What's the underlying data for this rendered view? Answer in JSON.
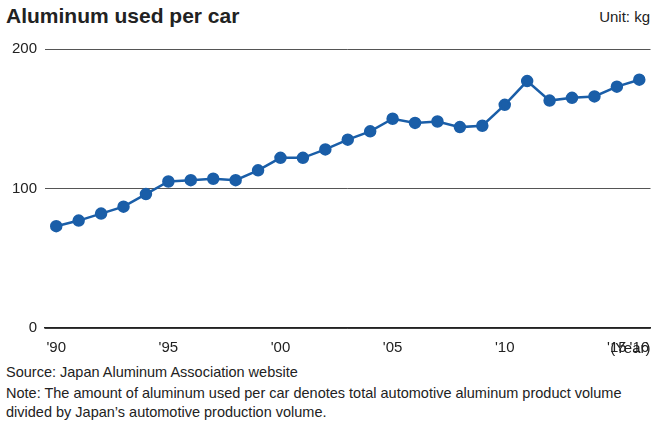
{
  "chart_data": {
    "type": "line",
    "title": "Aluminum used per car",
    "ylabel": "Unit: kg",
    "xlabel": "(Year)",
    "categories": [
      "'90",
      null,
      null,
      null,
      null,
      "'95",
      null,
      null,
      null,
      null,
      "'00",
      null,
      null,
      null,
      null,
      "'05",
      null,
      null,
      null,
      null,
      "'10",
      null,
      null,
      null,
      null,
      "'15",
      "'16"
    ],
    "values": [
      73,
      77,
      82,
      87,
      96,
      105,
      106,
      107,
      106,
      113,
      122,
      122,
      128,
      135,
      141,
      150,
      147,
      148,
      144,
      145,
      160,
      177,
      163,
      165,
      166,
      173,
      178
    ],
    "color": "#1a5ea8",
    "marker": "circle",
    "line_style": "solid",
    "ylim": [
      0,
      200
    ],
    "yticks": [
      0,
      100,
      200
    ],
    "grid": true,
    "source": "Source: Japan Aluminum Association website",
    "note": "Note: The amount of aluminum used per car denotes total automotive aluminum product volume divided by Japan’s automotive production volume."
  }
}
